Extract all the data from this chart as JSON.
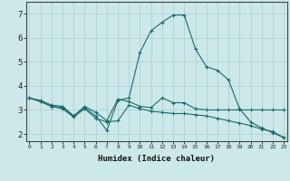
{
  "xlabel": "Humidex (Indice chaleur)",
  "ylabel": "",
  "background_color": "#cce8e8",
  "grid_color": "#aacfcf",
  "line_color": "#1a6b6b",
  "x_ticks": [
    0,
    1,
    2,
    3,
    4,
    5,
    6,
    7,
    8,
    9,
    10,
    11,
    12,
    13,
    14,
    15,
    16,
    17,
    18,
    19,
    20,
    21,
    22,
    23
  ],
  "y_ticks": [
    2,
    3,
    4,
    5,
    6,
    7
  ],
  "xlim": [
    0,
    23
  ],
  "ylim": [
    1.7,
    7.5
  ],
  "line1_x": [
    0,
    1,
    2,
    3,
    4,
    5,
    6,
    7,
    8,
    9,
    10,
    11,
    12,
    13,
    14,
    15,
    16,
    17,
    18,
    19,
    20,
    21,
    22,
    23
  ],
  "line1_y": [
    3.5,
    3.4,
    3.2,
    3.15,
    2.75,
    3.15,
    2.9,
    2.55,
    3.45,
    3.35,
    3.15,
    3.1,
    3.5,
    3.3,
    3.3,
    3.05,
    3.0,
    3.0,
    3.0,
    3.0,
    3.0,
    3.0,
    3.0,
    3.0
  ],
  "line2_x": [
    0,
    1,
    2,
    3,
    4,
    5,
    6,
    7,
    8,
    9,
    10,
    11,
    12,
    13,
    14,
    15,
    16,
    17,
    18,
    19,
    20,
    21,
    22,
    23
  ],
  "line2_y": [
    3.5,
    3.35,
    3.15,
    3.1,
    2.75,
    3.1,
    2.75,
    2.15,
    3.4,
    3.5,
    5.4,
    6.3,
    6.65,
    6.95,
    6.95,
    5.55,
    4.8,
    4.65,
    4.25,
    3.05,
    2.5,
    2.25,
    2.05,
    1.85
  ],
  "line3_x": [
    0,
    1,
    2,
    3,
    4,
    5,
    6,
    7,
    8,
    9,
    10,
    11,
    12,
    13,
    14,
    15,
    16,
    17,
    18,
    19,
    20,
    21,
    22,
    23
  ],
  "line3_y": [
    3.5,
    3.35,
    3.15,
    3.05,
    2.7,
    3.05,
    2.65,
    2.5,
    2.55,
    3.2,
    3.05,
    2.95,
    2.9,
    2.85,
    2.85,
    2.8,
    2.75,
    2.65,
    2.55,
    2.45,
    2.35,
    2.2,
    2.1,
    1.85
  ]
}
